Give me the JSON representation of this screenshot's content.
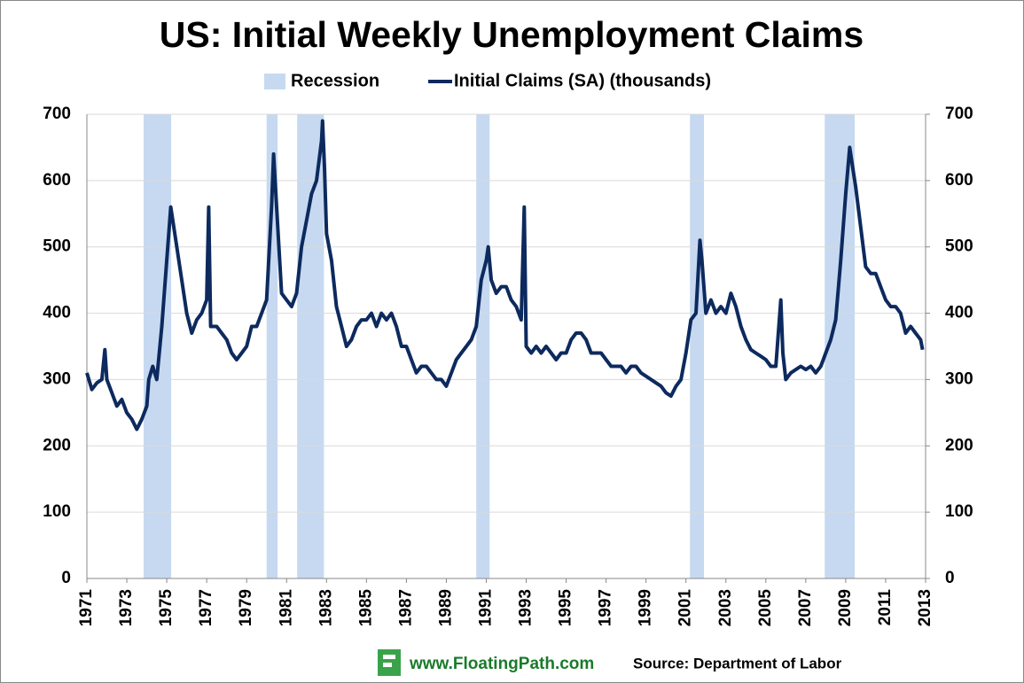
{
  "chart_data": {
    "type": "line",
    "title": "US: Initial Weekly Unemployment Claims",
    "source": "Source: Department of Labor",
    "website": "www.FloatingPath.com",
    "series": [
      {
        "name": "Recession",
        "color": "#c6d9f1",
        "ranges": [
          [
            1973.84,
            1975.22
          ],
          [
            1980.0,
            1980.55
          ],
          [
            1981.53,
            1982.87
          ],
          [
            1990.5,
            1991.17
          ],
          [
            2001.2,
            2001.9
          ],
          [
            2007.95,
            2009.45
          ]
        ]
      },
      {
        "name": "Initial Claims (SA) (thousands)",
        "color": "#0d2a5e",
        "x": [
          1971.0,
          1971.25,
          1971.5,
          1971.75,
          1971.9,
          1972.0,
          1972.25,
          1972.5,
          1972.75,
          1973.0,
          1973.25,
          1973.5,
          1973.75,
          1974.0,
          1974.1,
          1974.3,
          1974.5,
          1974.75,
          1975.0,
          1975.2,
          1975.3,
          1975.5,
          1975.75,
          1976.0,
          1976.25,
          1976.5,
          1976.75,
          1977.0,
          1977.1,
          1977.2,
          1977.5,
          1977.75,
          1978.0,
          1978.25,
          1978.5,
          1978.75,
          1979.0,
          1979.25,
          1979.5,
          1979.75,
          1980.0,
          1980.25,
          1980.35,
          1980.5,
          1980.75,
          1981.0,
          1981.25,
          1981.5,
          1981.75,
          1982.0,
          1982.25,
          1982.5,
          1982.75,
          1982.8,
          1982.9,
          1983.0,
          1983.25,
          1983.5,
          1983.75,
          1984.0,
          1984.25,
          1984.5,
          1984.75,
          1985.0,
          1985.25,
          1985.5,
          1985.75,
          1986.0,
          1986.25,
          1986.5,
          1986.75,
          1987.0,
          1987.25,
          1987.5,
          1987.75,
          1988.0,
          1988.25,
          1988.5,
          1988.75,
          1989.0,
          1989.25,
          1989.5,
          1989.75,
          1990.0,
          1990.25,
          1990.5,
          1990.75,
          1991.0,
          1991.1,
          1991.25,
          1991.5,
          1991.75,
          1992.0,
          1992.25,
          1992.5,
          1992.75,
          1992.9,
          1993.0,
          1993.25,
          1993.5,
          1993.75,
          1994.0,
          1994.25,
          1994.5,
          1994.75,
          1995.0,
          1995.25,
          1995.5,
          1995.75,
          1996.0,
          1996.25,
          1996.5,
          1996.75,
          1997.0,
          1997.25,
          1997.5,
          1997.75,
          1998.0,
          1998.25,
          1998.5,
          1998.75,
          1999.0,
          1999.25,
          1999.5,
          1999.75,
          2000.0,
          2000.25,
          2000.5,
          2000.75,
          2001.0,
          2001.25,
          2001.5,
          2001.7,
          2001.8,
          2002.0,
          2002.25,
          2002.5,
          2002.75,
          2003.0,
          2003.25,
          2003.5,
          2003.75,
          2004.0,
          2004.25,
          2004.5,
          2004.75,
          2005.0,
          2005.25,
          2005.5,
          2005.75,
          2005.85,
          2006.0,
          2006.25,
          2006.5,
          2006.75,
          2007.0,
          2007.25,
          2007.5,
          2007.75,
          2008.0,
          2008.25,
          2008.5,
          2008.75,
          2009.0,
          2009.2,
          2009.4,
          2009.5,
          2009.75,
          2010.0,
          2010.25,
          2010.5,
          2010.75,
          2011.0,
          2011.25,
          2011.5,
          2011.75,
          2012.0,
          2012.25,
          2012.5,
          2012.75,
          2012.85
        ],
        "values": [
          310,
          285,
          295,
          300,
          345,
          300,
          280,
          260,
          270,
          250,
          240,
          225,
          240,
          260,
          300,
          320,
          300,
          380,
          480,
          560,
          540,
          500,
          450,
          400,
          370,
          390,
          400,
          420,
          560,
          380,
          380,
          370,
          360,
          340,
          330,
          340,
          350,
          380,
          380,
          400,
          420,
          560,
          640,
          560,
          430,
          420,
          410,
          430,
          500,
          540,
          580,
          600,
          660,
          690,
          620,
          520,
          480,
          410,
          380,
          350,
          360,
          380,
          390,
          390,
          400,
          380,
          400,
          390,
          400,
          380,
          350,
          350,
          330,
          310,
          320,
          320,
          310,
          300,
          300,
          290,
          310,
          330,
          340,
          350,
          360,
          380,
          450,
          480,
          500,
          450,
          430,
          440,
          440,
          420,
          410,
          390,
          560,
          350,
          340,
          350,
          340,
          350,
          340,
          330,
          340,
          340,
          360,
          370,
          370,
          360,
          340,
          340,
          340,
          330,
          320,
          320,
          320,
          310,
          320,
          320,
          310,
          305,
          300,
          295,
          290,
          280,
          275,
          290,
          300,
          340,
          390,
          400,
          510,
          480,
          400,
          420,
          400,
          410,
          400,
          430,
          410,
          380,
          360,
          345,
          340,
          335,
          330,
          320,
          320,
          420,
          340,
          300,
          310,
          315,
          320,
          315,
          320,
          310,
          320,
          340,
          360,
          390,
          480,
          580,
          650,
          610,
          590,
          530,
          470,
          460,
          460,
          440,
          420,
          410,
          410,
          400,
          370,
          380,
          370,
          360,
          345
        ]
      }
    ],
    "xlim": [
      1971,
      2013
    ],
    "xticks": [
      1971,
      1973,
      1975,
      1977,
      1979,
      1981,
      1983,
      1985,
      1987,
      1989,
      1991,
      1993,
      1995,
      1997,
      1999,
      2001,
      2003,
      2005,
      2007,
      2009,
      2011,
      2013
    ],
    "ylim": [
      0,
      700
    ],
    "yticks": [
      0,
      100,
      200,
      300,
      400,
      500,
      600,
      700
    ],
    "y2lim": [
      0,
      700
    ],
    "y2ticks": [
      0,
      100,
      200,
      300,
      400,
      500,
      600,
      700
    ],
    "grid": true
  }
}
